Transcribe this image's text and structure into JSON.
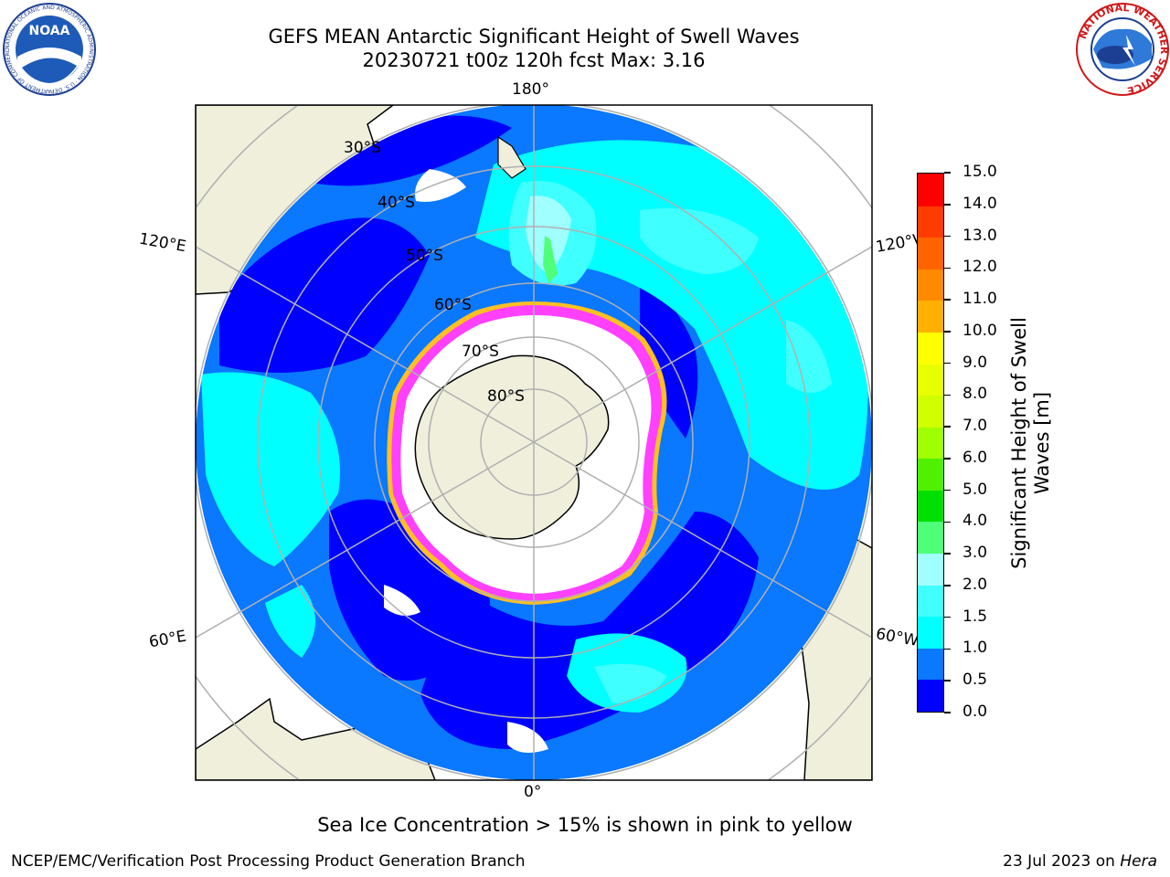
{
  "header": {
    "title_line1": "GEFS MEAN Antarctic Significant Height of Swell Waves",
    "title_line2": "20230721 t00z 120h fcst   Max: 3.16"
  },
  "logos": {
    "left": {
      "icon": "noaa-logo-icon",
      "text": "NOAA",
      "ring_text": "NATIONAL OCEANIC AND ATMOSPHERIC ADMINISTRATION · U.S. DEPARTMENT OF COMMERCE"
    },
    "right": {
      "icon": "national-weather-service-logo-icon",
      "ring_text": "NATIONAL WEATHER SERVICE"
    }
  },
  "map": {
    "projection": "south-polar-stereographic",
    "longitude_labels": {
      "top": "180°",
      "bottom": "0°",
      "upper_left": "120°E",
      "lower_left": "60°E",
      "upper_right": "120°W",
      "lower_right": "60°W"
    },
    "latitude_labels": [
      "30°S",
      "40°S",
      "50°S",
      "60°S",
      "70°S",
      "80°S"
    ],
    "colors": {
      "land": "#efefdc",
      "ice": "#ffffff",
      "coast": "#000000",
      "grid": "#b0b0b0",
      "ice_edge_inner": "#ff40ff",
      "ice_edge_outer": "#ffc020"
    }
  },
  "colorbar": {
    "label": "Significant Height of Swell Waves [m]",
    "label_line1": "Significant Height of Swell",
    "label_line2": "Waves [m]",
    "ticks": [
      "0.0",
      "0.5",
      "1.0",
      "1.5",
      "2.0",
      "3.0",
      "4.0",
      "5.0",
      "6.0",
      "7.0",
      "8.0",
      "9.0",
      "10.0",
      "11.0",
      "12.0",
      "13.0",
      "14.0",
      "15.0"
    ],
    "colors": [
      "#0000ff",
      "#0a78ff",
      "#00ffff",
      "#40ffff",
      "#a0ffff",
      "#50ff78",
      "#00e000",
      "#50f000",
      "#a0ff00",
      "#d0ff00",
      "#e8ff00",
      "#ffff00",
      "#ffb000",
      "#ff8a00",
      "#ff6400",
      "#ff3c00",
      "#ff0000"
    ]
  },
  "note": "Sea Ice Concentration > 15% is shown in pink to yellow",
  "footer": {
    "left": "NCEP/EMC/Verification Post Processing Product Generation Branch",
    "right_prefix": "23 Jul 2023 on ",
    "right_machine": "Hera"
  }
}
